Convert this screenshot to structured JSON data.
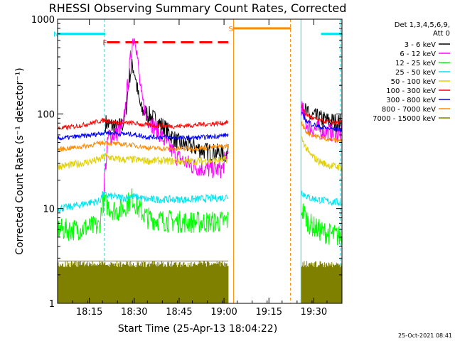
{
  "chart_data": {
    "type": "line",
    "title": "RHESSI Observing Summary Count Rates, Corrected",
    "xlabel": "Start Time (25-Apr-13 18:04:22)",
    "ylabel": "Corrected Count Rate (s⁻¹ detector⁻¹)",
    "ylog": true,
    "ylim": [
      1,
      1000
    ],
    "xlim_minutes": [
      0,
      95
    ],
    "x_tick_labels": [
      "18:15",
      "18:30",
      "18:45",
      "19:00",
      "19:15",
      "19:30"
    ],
    "x_tick_minutes": [
      10.6,
      25.6,
      40.6,
      55.6,
      70.6,
      85.6
    ],
    "y_tick_labels": [
      "1",
      "10",
      "100",
      "1000"
    ],
    "y_tick_values": [
      1,
      10,
      100,
      1000
    ],
    "legend_header": [
      "Det 1,3,4,5,6,9,",
      "Att 0"
    ],
    "legend_position": "right",
    "timestamp": "25-Oct-2021 08:41",
    "bars": [
      {
        "label": "N",
        "color": "#00e5ee",
        "start": 0,
        "end": 16,
        "level": 700
      },
      {
        "label": "",
        "color": "#00e5ee",
        "start": 88,
        "end": 95,
        "level": 700
      },
      {
        "label": "F",
        "color": "#ff0000",
        "start": 16.5,
        "end": 57,
        "level": 570
      },
      {
        "label": "S",
        "color": "#ff8c00",
        "start": 58.5,
        "end": 78,
        "level": 800
      }
    ],
    "vlines": [
      {
        "minute": 0,
        "color": "#00e5ee",
        "dash": false
      },
      {
        "minute": 15.7,
        "color": "#00e5ee",
        "dash": true
      },
      {
        "minute": 58.8,
        "color": "#ff8c00",
        "dash": false
      },
      {
        "minute": 77.8,
        "color": "#ff8c00",
        "dash": true
      },
      {
        "minute": 81.3,
        "color": "#00e5ee",
        "dash": false
      },
      {
        "minute": 94.5,
        "color": "#00e5ee",
        "dash": true
      }
    ],
    "series": [
      {
        "name": "3 - 6 keV",
        "color": "#000000",
        "points": [
          [
            16,
            80
          ],
          [
            18,
            75
          ],
          [
            20,
            70
          ],
          [
            22,
            80
          ],
          [
            23,
            120
          ],
          [
            24,
            250
          ],
          [
            25,
            330
          ],
          [
            26,
            250
          ],
          [
            27,
            150
          ],
          [
            28,
            110
          ],
          [
            30,
            100
          ],
          [
            33,
            85
          ],
          [
            36,
            70
          ],
          [
            40,
            50
          ],
          [
            45,
            45
          ],
          [
            50,
            40
          ],
          [
            55,
            38
          ],
          [
            57,
            38
          ]
        ],
        "post": [
          [
            81.5,
            140
          ],
          [
            82.5,
            110
          ],
          [
            84,
            95
          ],
          [
            87,
            90
          ],
          [
            90,
            85
          ],
          [
            95,
            80
          ]
        ]
      },
      {
        "name": "6 - 12 keV",
        "color": "#ff00ff",
        "points": [
          [
            15.5,
            18
          ],
          [
            17,
            60
          ],
          [
            19,
            60
          ],
          [
            22,
            75
          ],
          [
            24,
            300
          ],
          [
            25,
            600
          ],
          [
            26,
            650
          ],
          [
            27,
            300
          ],
          [
            28,
            150
          ],
          [
            30,
            90
          ],
          [
            33,
            70
          ],
          [
            36,
            50
          ],
          [
            40,
            35
          ],
          [
            45,
            28
          ],
          [
            50,
            26
          ],
          [
            55,
            26
          ],
          [
            57,
            40
          ]
        ],
        "post": [
          [
            81.5,
            120
          ],
          [
            83,
            80
          ],
          [
            85,
            70
          ],
          [
            90,
            65
          ],
          [
            95,
            60
          ]
        ]
      },
      {
        "name": "12 - 25 keV",
        "color": "#00ff00",
        "points": [
          [
            0,
            6
          ],
          [
            5,
            6
          ],
          [
            10,
            6.3
          ],
          [
            14,
            6.5
          ],
          [
            15,
            12
          ],
          [
            18,
            10
          ],
          [
            20,
            9.5
          ],
          [
            22,
            10
          ],
          [
            25,
            13
          ],
          [
            27,
            10
          ],
          [
            30,
            8
          ],
          [
            35,
            7.5
          ],
          [
            40,
            7.3
          ],
          [
            45,
            7.2
          ],
          [
            50,
            7.2
          ],
          [
            55,
            7.3
          ],
          [
            57,
            7.5
          ]
        ],
        "post": [
          [
            81.5,
            10
          ],
          [
            84,
            7
          ],
          [
            87,
            6
          ],
          [
            90,
            5.5
          ],
          [
            95,
            5
          ]
        ]
      },
      {
        "name": "25 - 50 keV",
        "color": "#00e5ee",
        "points": [
          [
            0,
            10
          ],
          [
            5,
            10.5
          ],
          [
            10,
            11.5
          ],
          [
            14,
            12
          ],
          [
            15,
            14
          ],
          [
            18,
            13.5
          ],
          [
            22,
            13
          ],
          [
            25,
            13.5
          ],
          [
            30,
            12.5
          ],
          [
            35,
            12.5
          ],
          [
            40,
            12.5
          ],
          [
            45,
            12.5
          ],
          [
            50,
            12.8
          ],
          [
            55,
            13
          ],
          [
            57,
            13.5
          ]
        ],
        "post": [
          [
            81.5,
            15
          ],
          [
            84,
            13
          ],
          [
            87,
            12.5
          ],
          [
            90,
            12
          ],
          [
            95,
            11.5
          ]
        ]
      },
      {
        "name": "50 - 100 keV",
        "color": "#e0d000",
        "points": [
          [
            0,
            28
          ],
          [
            5,
            29
          ],
          [
            10,
            31
          ],
          [
            14,
            33
          ],
          [
            16,
            36
          ],
          [
            20,
            33
          ],
          [
            25,
            33
          ],
          [
            30,
            32
          ],
          [
            35,
            32
          ],
          [
            40,
            31.5
          ],
          [
            45,
            31.5
          ],
          [
            50,
            32
          ],
          [
            55,
            32.5
          ],
          [
            57,
            33
          ]
        ],
        "post": [
          [
            81.5,
            55
          ],
          [
            84,
            38
          ],
          [
            87,
            32
          ],
          [
            90,
            29
          ],
          [
            95,
            27
          ]
        ]
      },
      {
        "name": "100 - 300 keV",
        "color": "#ff0000",
        "points": [
          [
            0,
            70
          ],
          [
            5,
            73
          ],
          [
            10,
            78
          ],
          [
            14,
            84
          ],
          [
            16,
            86
          ],
          [
            20,
            80
          ],
          [
            25,
            80
          ],
          [
            30,
            76
          ],
          [
            35,
            75
          ],
          [
            40,
            74
          ],
          [
            45,
            76
          ],
          [
            50,
            78
          ],
          [
            55,
            80
          ],
          [
            57,
            82
          ]
        ],
        "post": [
          [
            81.5,
            120
          ],
          [
            83,
            100
          ],
          [
            85,
            90
          ],
          [
            88,
            85
          ],
          [
            91,
            82
          ],
          [
            95,
            80
          ]
        ]
      },
      {
        "name": "300 - 800 keV",
        "color": "#0000ff",
        "points": [
          [
            0,
            55
          ],
          [
            5,
            57
          ],
          [
            10,
            59
          ],
          [
            14,
            62
          ],
          [
            16,
            64
          ],
          [
            20,
            62
          ],
          [
            25,
            61
          ],
          [
            30,
            57
          ],
          [
            35,
            57
          ],
          [
            40,
            56
          ],
          [
            45,
            56
          ],
          [
            50,
            57
          ],
          [
            55,
            59
          ],
          [
            57,
            60
          ]
        ],
        "post": [
          [
            81.5,
            100
          ],
          [
            83,
            85
          ],
          [
            85,
            78
          ],
          [
            88,
            72
          ],
          [
            91,
            70
          ],
          [
            95,
            68
          ]
        ]
      },
      {
        "name": "800 - 7000 keV",
        "color": "#ff8c00",
        "points": [
          [
            0,
            42
          ],
          [
            5,
            44
          ],
          [
            10,
            46
          ],
          [
            14,
            49
          ],
          [
            16,
            50
          ],
          [
            20,
            48
          ],
          [
            25,
            47
          ],
          [
            30,
            44
          ],
          [
            35,
            43
          ],
          [
            40,
            43
          ],
          [
            45,
            43
          ],
          [
            50,
            44
          ],
          [
            55,
            45
          ],
          [
            57,
            46
          ]
        ],
        "post": [
          [
            81.5,
            80
          ],
          [
            83,
            65
          ],
          [
            85,
            60
          ],
          [
            88,
            56
          ],
          [
            91,
            54
          ],
          [
            95,
            52
          ]
        ]
      },
      {
        "name": "7000 - 15000 keV",
        "color": "#808000",
        "points": [
          [
            0,
            2.8
          ],
          [
            16,
            2.8
          ],
          [
            18,
            2.8
          ],
          [
            30,
            2.8
          ],
          [
            45,
            2.8
          ],
          [
            57,
            2.8
          ]
        ],
        "post": [
          [
            81.5,
            2.3
          ],
          [
            95,
            2.3
          ]
        ]
      }
    ]
  }
}
